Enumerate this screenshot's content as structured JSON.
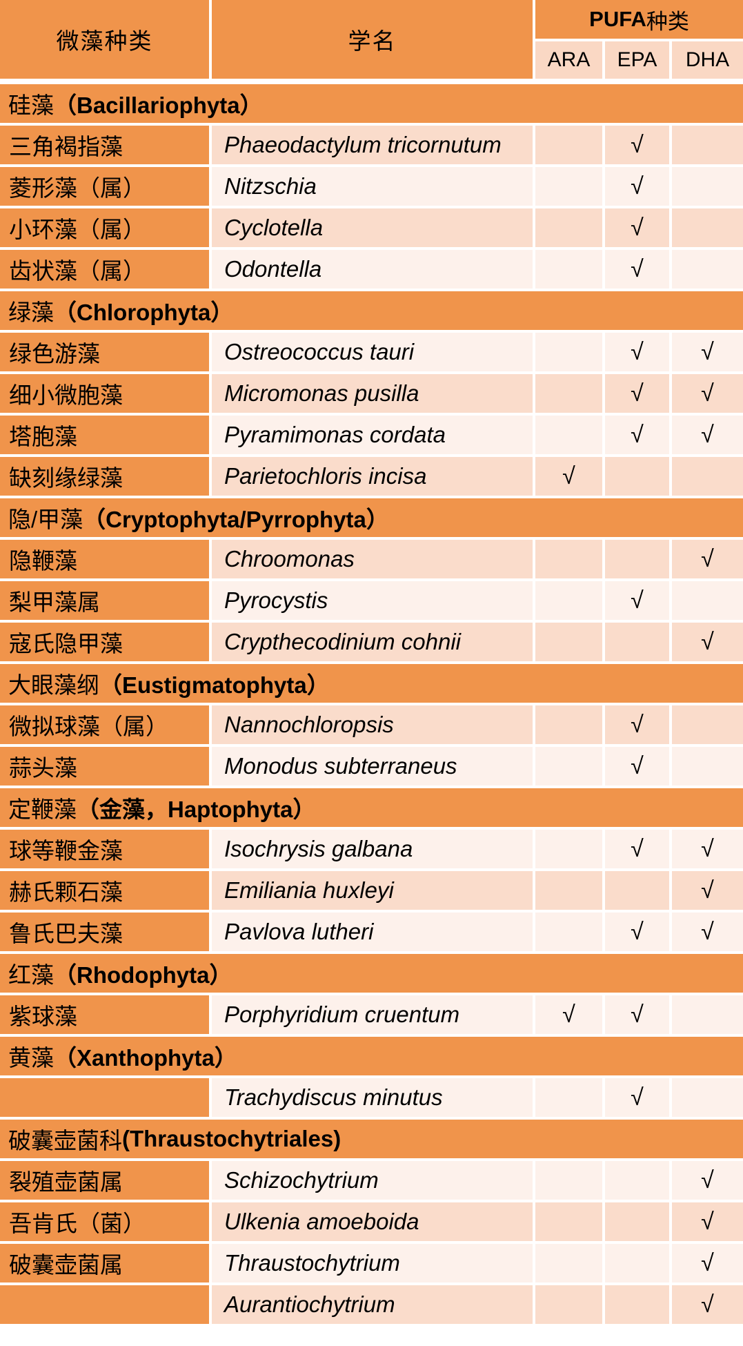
{
  "chart_data": {
    "type": "table",
    "header": {
      "species_label": "微藻种类",
      "latin_label": "学名",
      "pufa_group_en": "PUFA",
      "pufa_group_zh": "种类",
      "pufa_cols": [
        "ARA",
        "EPA",
        "DHA"
      ]
    },
    "check_glyph": "√",
    "rows": [
      {
        "type": "section",
        "zh": "硅藻",
        "paren": "（Bacillariophyta）"
      },
      {
        "type": "data",
        "zh": "三角褐指藻",
        "latin": "Phaeodactylum tricornutum",
        "pufa": [
          "EPA"
        ]
      },
      {
        "type": "data",
        "zh": "菱形藻（属）",
        "latin": "Nitzschia",
        "pufa": [
          "EPA"
        ]
      },
      {
        "type": "data",
        "zh": "小环藻（属）",
        "latin": "Cyclotella",
        "pufa": [
          "EPA"
        ]
      },
      {
        "type": "data",
        "zh": "齿状藻（属）",
        "latin": "Odontella",
        "pufa": [
          "EPA"
        ]
      },
      {
        "type": "section",
        "zh": "绿藻",
        "paren": "（Chlorophyta）"
      },
      {
        "type": "data",
        "zh": "绿色游藻",
        "latin": "Ostreococcus tauri",
        "pufa": [
          "EPA",
          "DHA"
        ]
      },
      {
        "type": "data",
        "zh": "细小微胞藻",
        "latin": "Micromonas pusilla",
        "pufa": [
          "EPA",
          "DHA"
        ]
      },
      {
        "type": "data",
        "zh": "塔胞藻",
        "latin": "Pyramimonas cordata",
        "pufa": [
          "EPA",
          "DHA"
        ]
      },
      {
        "type": "data",
        "zh": "缺刻缘绿藻",
        "latin": "Parietochloris incisa",
        "pufa": [
          "ARA"
        ]
      },
      {
        "type": "section",
        "zh": "隐/甲藻",
        "paren": "（Cryptophyta/Pyrrophyta）"
      },
      {
        "type": "data",
        "zh": "隐鞭藻",
        "latin": "Chroomonas",
        "pufa": [
          "DHA"
        ]
      },
      {
        "type": "data",
        "zh": "梨甲藻属",
        "latin": "Pyrocystis",
        "pufa": [
          "EPA"
        ]
      },
      {
        "type": "data",
        "zh": "寇氏隐甲藻",
        "latin": "Crypthecodinium cohnii",
        "pufa": [
          "DHA"
        ]
      },
      {
        "type": "section",
        "zh": "大眼藻纲",
        "paren": "（Eustigmatophyta）"
      },
      {
        "type": "data",
        "zh": "微拟球藻（属）",
        "latin": "Nannochloropsis",
        "pufa": [
          "EPA"
        ]
      },
      {
        "type": "data",
        "zh": "蒜头藻",
        "latin": "Monodus subterraneus",
        "pufa": [
          "EPA"
        ]
      },
      {
        "type": "section",
        "zh": "定鞭藻",
        "paren": "（金藻，Haptophyta）"
      },
      {
        "type": "data",
        "zh": "球等鞭金藻",
        "latin": "Isochrysis galbana",
        "pufa": [
          "EPA",
          "DHA"
        ]
      },
      {
        "type": "data",
        "zh": "赫氏颗石藻",
        "latin": "Emiliania huxleyi",
        "pufa": [
          "DHA"
        ]
      },
      {
        "type": "data",
        "zh": "鲁氏巴夫藻",
        "latin": "Pavlova lutheri",
        "pufa": [
          "EPA",
          "DHA"
        ]
      },
      {
        "type": "section",
        "zh": "红藻",
        "paren": "（Rhodophyta）"
      },
      {
        "type": "data",
        "zh": "紫球藻",
        "latin": "Porphyridium cruentum",
        "pufa": [
          "ARA",
          "EPA"
        ]
      },
      {
        "type": "section",
        "zh": "黄藻",
        "paren": "（Xanthophyta）"
      },
      {
        "type": "data",
        "zh": "",
        "latin": "Trachydiscus minutus",
        "pufa": [
          "EPA"
        ]
      },
      {
        "type": "section",
        "zh": "破囊壶菌科",
        "paren": "(Thraustochytriales)"
      },
      {
        "type": "data",
        "zh": "裂殖壶菌属",
        "latin": "Schizochytrium",
        "pufa": [
          "DHA"
        ]
      },
      {
        "type": "data",
        "zh": "吾肯氏（菌）",
        "latin": "Ulkenia amoeboida",
        "pufa": [
          "DHA"
        ]
      },
      {
        "type": "data",
        "zh": "破囊壶菌属",
        "latin": "Thraustochytrium",
        "pufa": [
          "DHA"
        ]
      },
      {
        "type": "data",
        "zh": "",
        "latin": "Aurantiochytrium",
        "pufa": [
          "DHA"
        ]
      }
    ],
    "colors": {
      "header_orange": "#F0944B",
      "band_dark": "#FADCCB",
      "band_light": "#FDF1EB",
      "subheader_pink": "#FAD8C4",
      "grid_white": "#FFFFFF",
      "text": "#000000"
    },
    "layout_hints": {
      "banding": "rows alternate light/dark pink by overall row parity",
      "grid": "white 4px separators between all cells",
      "legend_position": "none",
      "title": ""
    }
  }
}
